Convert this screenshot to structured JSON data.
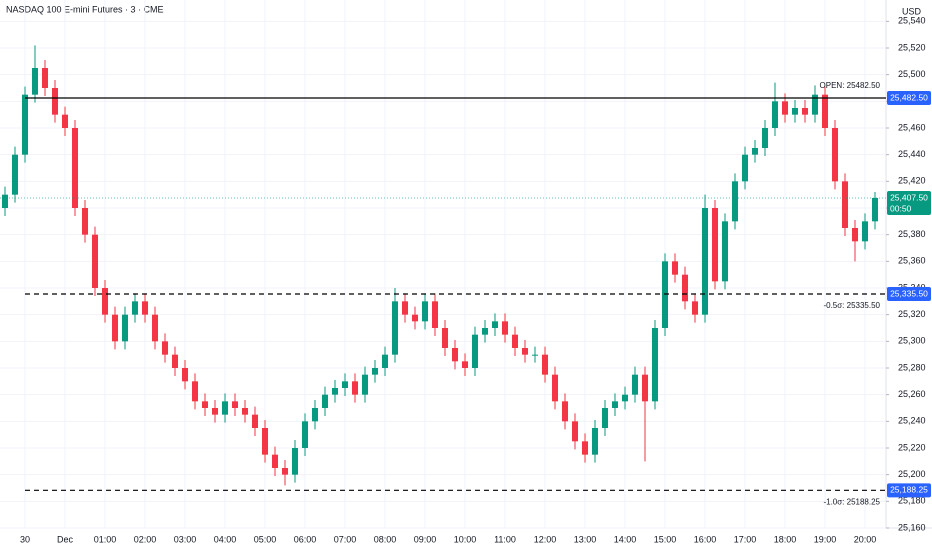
{
  "chart_data": {
    "type": "candlestick",
    "title": "NASDAQ 100 E-mini Futures · 3 · CME",
    "currency": "USD",
    "up_color": "#089981",
    "down_color": "#f23645",
    "grid": true,
    "categories": [
      null,
      null,
      "30",
      null,
      null,
      null,
      "Dec",
      null,
      null,
      null,
      "01:00",
      null,
      null,
      null,
      "02:00",
      null,
      null,
      null,
      "03:00",
      null,
      null,
      null,
      "04:00",
      null,
      null,
      null,
      "05:00",
      null,
      null,
      null,
      "06:00",
      null,
      null,
      null,
      "07:00",
      null,
      null,
      null,
      "08:00",
      null,
      null,
      null,
      "09:00",
      null,
      null,
      null,
      "10:00",
      null,
      null,
      null,
      "11:00",
      null,
      null,
      null,
      "12:00",
      null,
      null,
      null,
      "13:00",
      null,
      null,
      null,
      "14:00",
      null,
      null,
      null,
      "15:00",
      null,
      null,
      null,
      "16:00",
      null,
      null,
      null,
      "17:00",
      null,
      null,
      null,
      "18:00",
      null,
      null,
      null,
      "19:00",
      null,
      null,
      null,
      "20:00",
      null
    ],
    "open": [
      25400,
      25410,
      25440,
      25485,
      25505,
      25490,
      25470,
      25460,
      25400,
      25380,
      25340,
      25320,
      25300,
      25320,
      25330,
      25320,
      25300,
      25290,
      25280,
      25270,
      25255,
      25250,
      25245,
      25255,
      25250,
      25245,
      25235,
      25215,
      25205,
      25200,
      25220,
      25240,
      25250,
      25260,
      25265,
      25270,
      25260,
      25275,
      25280,
      25290,
      25330,
      25320,
      25315,
      25330,
      25310,
      25295,
      25285,
      25280,
      25305,
      25310,
      25315,
      25305,
      25295,
      25290,
      25290,
      25275,
      25255,
      25240,
      25225,
      25215,
      25235,
      25250,
      25255,
      25260,
      25275,
      25255,
      25310,
      25360,
      25350,
      25330,
      25320,
      25400,
      25345,
      25390,
      25420,
      25440,
      25445,
      25460,
      25480,
      25470,
      25475,
      25470,
      25485,
      25460,
      25420,
      25385,
      25375,
      25390
    ],
    "high": [
      25416,
      25446,
      25491,
      25522,
      25511,
      25496,
      25476,
      25466,
      25406,
      25386,
      25346,
      25326,
      25326,
      25336,
      25336,
      25326,
      25306,
      25296,
      25286,
      25276,
      25261,
      25256,
      25261,
      25261,
      25256,
      25251,
      25241,
      25221,
      25211,
      25226,
      25246,
      25256,
      25266,
      25271,
      25276,
      25276,
      25281,
      25286,
      25296,
      25340,
      25336,
      25326,
      25336,
      25336,
      25316,
      25301,
      25291,
      25311,
      25316,
      25321,
      25321,
      25311,
      25301,
      25296,
      25296,
      25281,
      25261,
      25246,
      25231,
      25241,
      25256,
      25261,
      25266,
      25281,
      25281,
      25316,
      25366,
      25366,
      25356,
      25336,
      25410,
      25406,
      25396,
      25426,
      25446,
      25451,
      25466,
      25494,
      25486,
      25481,
      25481,
      25492,
      25491,
      25466,
      25426,
      25391,
      25396,
      25412
    ],
    "low": [
      25394,
      25404,
      25434,
      25479,
      25484,
      25464,
      25454,
      25394,
      25374,
      25334,
      25314,
      25294,
      25294,
      25314,
      25314,
      25294,
      25284,
      25274,
      25264,
      25249,
      25244,
      25239,
      25239,
      25244,
      25239,
      25229,
      25209,
      25199,
      25192,
      25194,
      25214,
      25234,
      25244,
      25254,
      25259,
      25254,
      25254,
      25269,
      25274,
      25284,
      25314,
      25309,
      25309,
      25304,
      25289,
      25279,
      25274,
      25274,
      25299,
      25304,
      25299,
      25289,
      25284,
      25284,
      25269,
      25249,
      25234,
      25219,
      25209,
      25209,
      25229,
      25244,
      25249,
      25254,
      25210,
      25249,
      25304,
      25344,
      25324,
      25314,
      25314,
      25339,
      25339,
      25384,
      25414,
      25434,
      25439,
      25454,
      25464,
      25464,
      25464,
      25464,
      25454,
      25414,
      25379,
      25360,
      25369,
      25384
    ],
    "close": [
      25410,
      25440,
      25485,
      25505,
      25490,
      25470,
      25460,
      25400,
      25380,
      25340,
      25320,
      25300,
      25320,
      25330,
      25320,
      25300,
      25290,
      25280,
      25270,
      25255,
      25250,
      25245,
      25255,
      25250,
      25245,
      25235,
      25215,
      25205,
      25200,
      25220,
      25240,
      25250,
      25260,
      25265,
      25270,
      25260,
      25275,
      25280,
      25290,
      25330,
      25320,
      25315,
      25330,
      25310,
      25295,
      25285,
      25280,
      25305,
      25310,
      25315,
      25305,
      25295,
      25290,
      25290,
      25275,
      25255,
      25240,
      25225,
      25215,
      25235,
      25250,
      25255,
      25260,
      25275,
      25255,
      25310,
      25360,
      25350,
      25330,
      25320,
      25400,
      25345,
      25390,
      25420,
      25440,
      25445,
      25460,
      25480,
      25470,
      25475,
      25470,
      25485,
      25460,
      25420,
      25385,
      25375,
      25390,
      25407.5
    ],
    "ylim": [
      25160,
      25556
    ],
    "yticks": [
      {
        "value": 25160,
        "label": "25,160"
      },
      {
        "value": 25180,
        "label": "25,180"
      },
      {
        "value": 25200,
        "label": "25,200"
      },
      {
        "value": 25220,
        "label": "25,220"
      },
      {
        "value": 25240,
        "label": "25,240"
      },
      {
        "value": 25260,
        "label": "25,260"
      },
      {
        "value": 25280,
        "label": "25,280"
      },
      {
        "value": 25300,
        "label": "25,300"
      },
      {
        "value": 25320,
        "label": "25,320"
      },
      {
        "value": 25340,
        "label": "25,340"
      },
      {
        "value": 25360,
        "label": "25,360"
      },
      {
        "value": 25380,
        "label": "25,380"
      },
      {
        "value": 25400,
        "label": "25,400"
      },
      {
        "value": 25420,
        "label": "25,420"
      },
      {
        "value": 25440,
        "label": "25,440"
      },
      {
        "value": 25460,
        "label": "25,460"
      },
      {
        "value": 25480,
        "label": "25,480"
      },
      {
        "value": 25500,
        "label": "25,500"
      },
      {
        "value": 25520,
        "label": "25,520"
      },
      {
        "value": 25540,
        "label": "25,540"
      }
    ],
    "levels": [
      {
        "label": "OPEN: 25482.50",
        "value": 25482.5,
        "value_label": "25,482.50",
        "dashed": false
      },
      {
        "label": "-0.5σ: 25335.50",
        "value": 25335.5,
        "value_label": "25,335.50",
        "dashed": true
      },
      {
        "label": "-1.0σ: 25188.25",
        "value": 25188.25,
        "value_label": "25,188.25",
        "dashed": true
      }
    ],
    "last_price": {
      "value": 25407.5,
      "label": "25,407.50",
      "countdown": "00:50",
      "color": "#089981"
    }
  }
}
